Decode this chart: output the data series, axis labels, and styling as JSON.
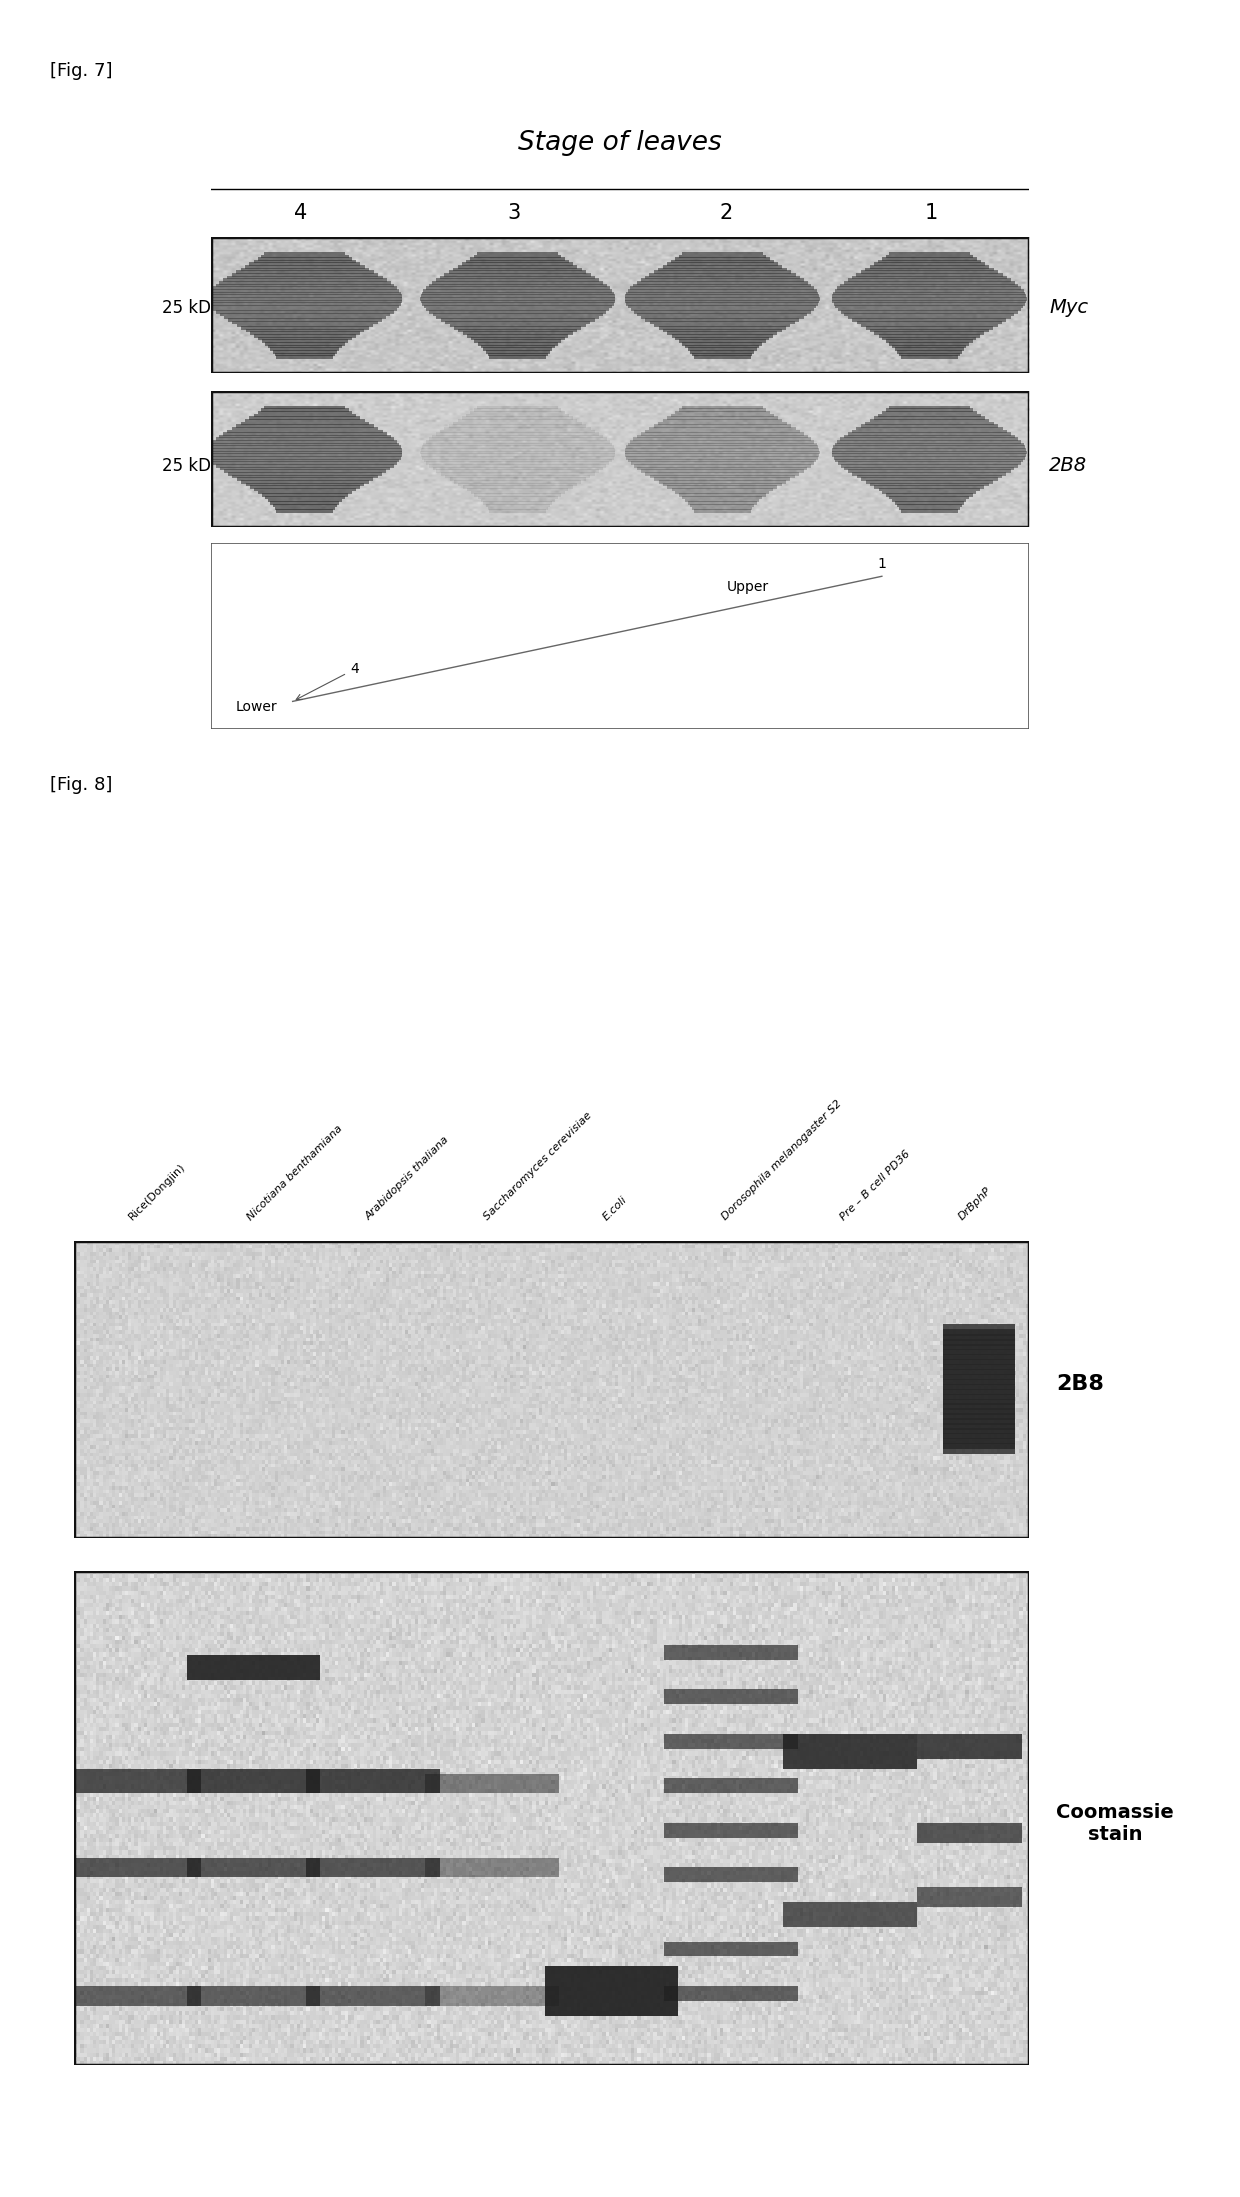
{
  "fig_label_7": "[Fig. 7]",
  "fig_label_8": "[Fig. 8]",
  "stage_title": "Stage of leaves",
  "lane_labels_7": [
    "4",
    "3",
    "2",
    "1"
  ],
  "kd_label_myc": "25 kD",
  "kd_label_2b8": "25 kD",
  "myc_label": "Myc",
  "blot_2b8_label": "2B8",
  "upper_label": "Upper",
  "lower_label": "Lower",
  "upper_num": "1",
  "lower_num": "4",
  "col_labels_8": [
    "Rice(Dongjin)",
    "Nicotiana benthamiana",
    "Arabidopsis thaliana",
    "Saccharomyces cerevisiae",
    "E.coli",
    "Dorosophila melanogaster S2",
    "Pre – B cell PD36",
    "DrBphP"
  ],
  "label_2b8_fig8": "2B8",
  "label_coomassie": "Coomassie\nstain",
  "bg_color": "#ffffff"
}
